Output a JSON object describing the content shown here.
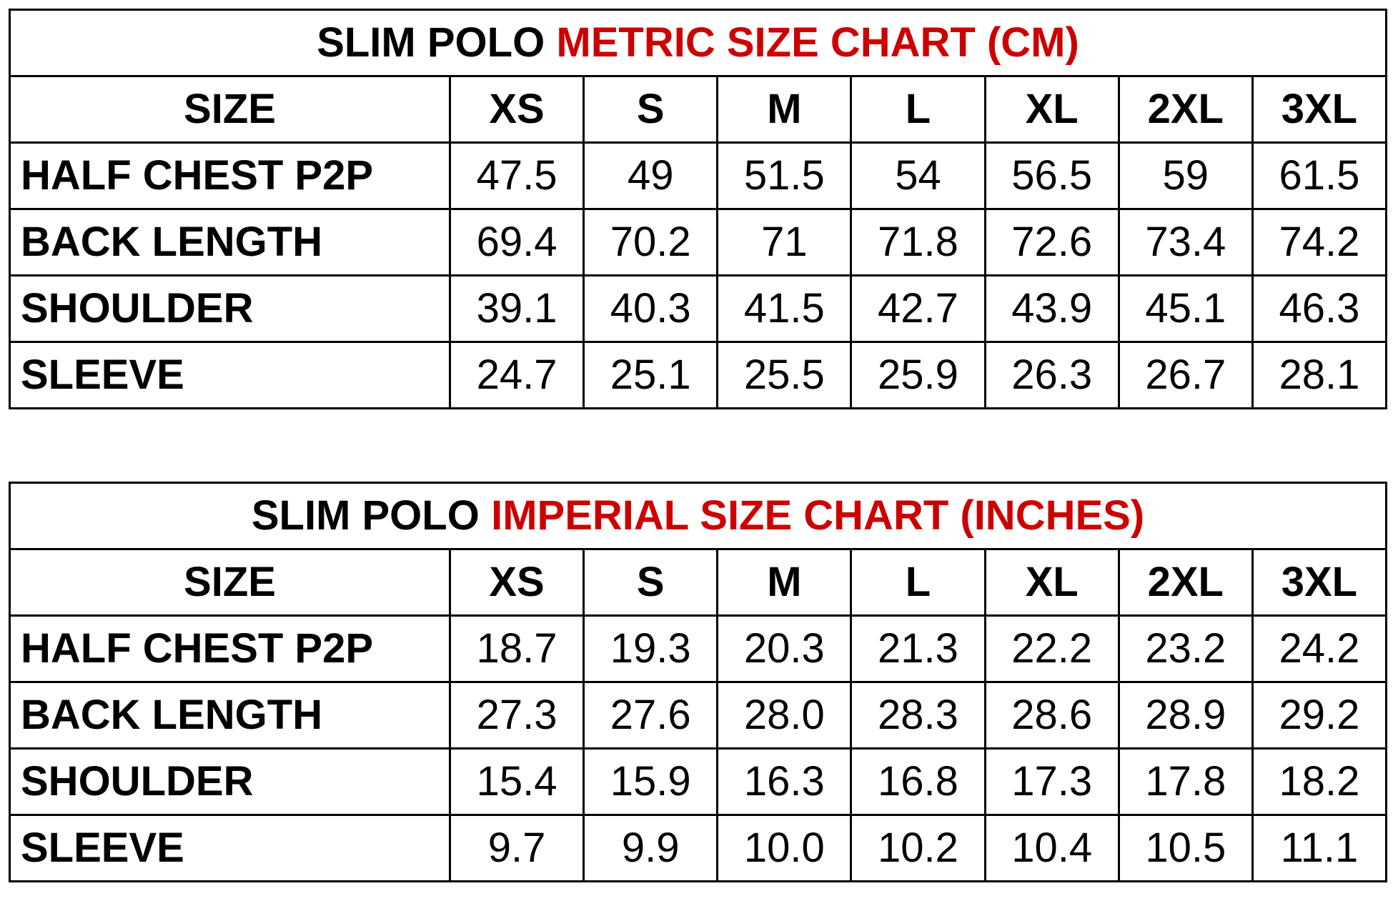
{
  "tables": [
    {
      "title": {
        "prefix": "SLIM POLO",
        "highlight": "METRIC SIZE CHART (CM)"
      },
      "header": [
        "SIZE",
        "XS",
        "S",
        "M",
        "L",
        "XL",
        "2XL",
        "3XL"
      ],
      "rows": [
        [
          "HALF CHEST P2P",
          "47.5",
          "49",
          "51.5",
          "54",
          "56.5",
          "59",
          "61.5"
        ],
        [
          "BACK LENGTH",
          "69.4",
          "70.2",
          "71",
          "71.8",
          "72.6",
          "73.4",
          "74.2"
        ],
        [
          "SHOULDER",
          "39.1",
          "40.3",
          "41.5",
          "42.7",
          "43.9",
          "45.1",
          "46.3"
        ],
        [
          "SLEEVE",
          "24.7",
          "25.1",
          "25.5",
          "25.9",
          "26.3",
          "26.7",
          "28.1"
        ]
      ]
    },
    {
      "title": {
        "prefix": "SLIM POLO",
        "highlight": "IMPERIAL SIZE CHART (INCHES)"
      },
      "header": [
        "SIZE",
        "XS",
        "S",
        "M",
        "L",
        "XL",
        "2XL",
        "3XL"
      ],
      "rows": [
        [
          "HALF CHEST P2P",
          "18.7",
          "19.3",
          "20.3",
          "21.3",
          "22.2",
          "23.2",
          "24.2"
        ],
        [
          "BACK LENGTH",
          "27.3",
          "27.6",
          "28.0",
          "28.3",
          "28.6",
          "28.9",
          "29.2"
        ],
        [
          "SHOULDER",
          "15.4",
          "15.9",
          "16.3",
          "16.8",
          "17.3",
          "17.8",
          "18.2"
        ],
        [
          "SLEEVE",
          "9.7",
          "9.9",
          "10.0",
          "10.2",
          "10.4",
          "10.5",
          "11.1"
        ]
      ]
    }
  ]
}
